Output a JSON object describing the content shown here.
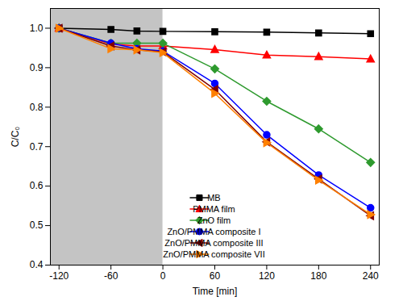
{
  "chart_data": {
    "type": "line",
    "x_label": "Time [min]",
    "y_label": "C/C₀",
    "x": [
      -120,
      -60,
      -30,
      0,
      60,
      120,
      180,
      240
    ],
    "xlim": [
      -130,
      250
    ],
    "xticks": [
      -120,
      -60,
      0,
      60,
      120,
      180,
      240
    ],
    "ylim": [
      0.4,
      1.05
    ],
    "yticks": [
      0.4,
      0.5,
      0.6,
      0.7,
      0.8,
      0.9,
      {
        "value": 1,
        "label": "1.0"
      }
    ],
    "shaded_x": [
      -130,
      0
    ],
    "grid": false,
    "legend": "lower right",
    "series": [
      {
        "name": "MB",
        "color": "#000000",
        "marker": "square",
        "values": [
          1.0,
          0.997,
          0.993,
          0.992,
          0.991,
          0.99,
          0.988,
          0.986
        ]
      },
      {
        "name": "PMMA film",
        "color": "#ff0000",
        "marker": "triangle-up",
        "values": [
          1.0,
          0.96,
          0.955,
          0.955,
          0.946,
          0.932,
          0.928,
          0.922
        ]
      },
      {
        "name": "ZnO film",
        "color": "#2e9a2e",
        "marker": "diamond",
        "values": [
          1.0,
          0.962,
          0.962,
          0.962,
          0.897,
          0.815,
          0.745,
          0.66
        ]
      },
      {
        "name": "ZnO/PMMA composite I",
        "color": "#0000ff",
        "marker": "circle",
        "values": [
          1.0,
          0.962,
          0.948,
          0.942,
          0.86,
          0.73,
          0.628,
          0.545
        ]
      },
      {
        "name": "ZnO/PMMA composite III",
        "color": "#800000",
        "marker": "triangle-left",
        "values": [
          1.0,
          0.955,
          0.945,
          0.94,
          0.845,
          0.712,
          0.618,
          0.525
        ]
      },
      {
        "name": "ZnO/PMMA composite VII",
        "color": "#ff8000",
        "marker": "triangle-right",
        "values": [
          1.0,
          0.948,
          0.945,
          0.938,
          0.835,
          0.71,
          0.615,
          0.528
        ]
      }
    ]
  }
}
